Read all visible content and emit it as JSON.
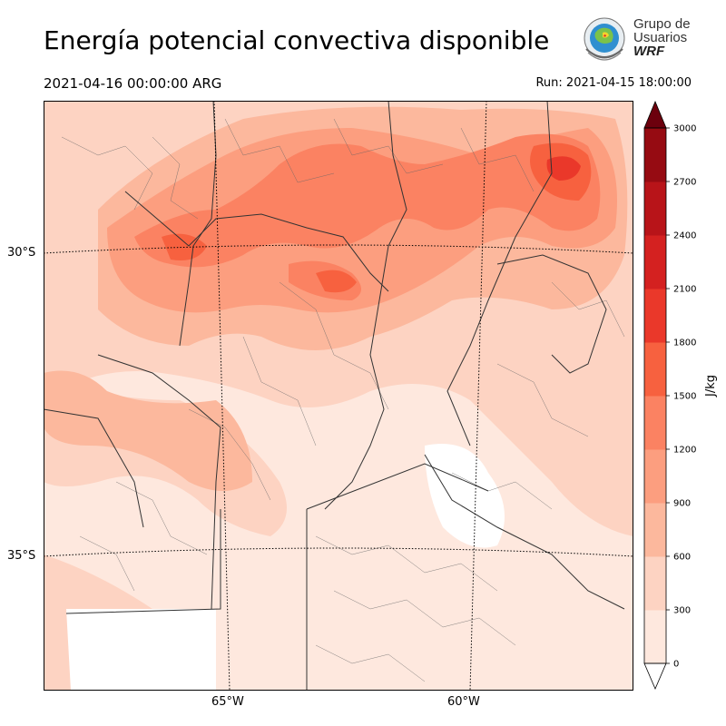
{
  "header": {
    "title": "Energía potencial convectiva disponible",
    "valid_time": "2021-04-16 00:00:00 ARG",
    "run_label": "Run: 2021-04-15 18:00:00"
  },
  "logo": {
    "line1": "Grupo de",
    "line2": "Usuarios",
    "line3": "WRF"
  },
  "map": {
    "lat_labels": [
      "30°S",
      "35°S"
    ],
    "lon_labels": [
      "65°W",
      "60°W"
    ],
    "icons": [
      "weather-map-field",
      "province-borders",
      "department-borders",
      "graticule-lines"
    ]
  },
  "colorbar": {
    "unit": "J/kg",
    "ticks": [
      "0",
      "300",
      "600",
      "900",
      "1200",
      "1500",
      "1800",
      "2100",
      "2400",
      "2700",
      "3000"
    ],
    "colors": [
      "#fee8de",
      "#fdd3c2",
      "#fcb89d",
      "#fc9e7f",
      "#fb8262",
      "#f7613f",
      "#ea382a",
      "#d42120",
      "#b81419",
      "#960b12",
      "#6c000d",
      "#6c000d"
    ]
  },
  "chart_data": {
    "type": "heatmap",
    "variable": "Energía potencial convectiva disponible",
    "unit": "J/kg",
    "levels": [
      0,
      300,
      600,
      900,
      1200,
      1500,
      1800,
      2100,
      2400,
      2700,
      3000
    ],
    "lon_ticks": [
      "65°W",
      "60°W"
    ],
    "lat_ticks": [
      "30°S",
      "35°S"
    ]
  }
}
